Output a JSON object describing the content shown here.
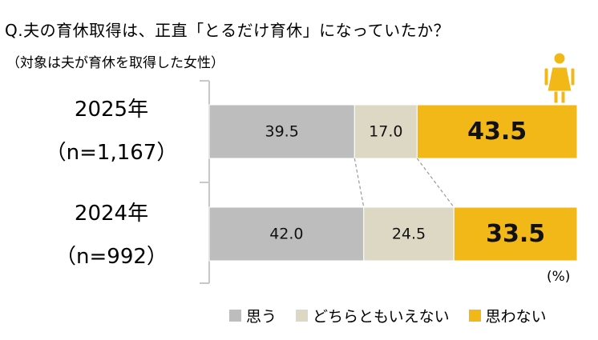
{
  "title": "Q.夫の育休取得は、正直「とるだけ育休」になっていたか？",
  "subtitle": "（対象は夫が育休を取得した女性）",
  "unit_label": "(%)",
  "colors": {
    "omou": "#bdbdbd",
    "dochira": "#dcd8c4",
    "omowanai": "#f2b818",
    "axis": "#c8c8c8",
    "connector": "#9a9a9a"
  },
  "icon": "woman-icon",
  "chart_data": {
    "type": "bar",
    "orientation": "horizontal",
    "stacked": true,
    "percent_stacked": true,
    "categories": [
      "2025年",
      "2024年"
    ],
    "category_sublabels": [
      "（n=1,167）",
      "（n=992）"
    ],
    "series": [
      {
        "name": "思う",
        "values": [
          39.5,
          42.0
        ],
        "color": "#bdbdbd"
      },
      {
        "name": "どちらともいえない",
        "values": [
          17.0,
          24.5
        ],
        "color": "#dcd8c4"
      },
      {
        "name": "思わない",
        "values": [
          43.5,
          33.5
        ],
        "color": "#f2b818"
      }
    ],
    "data_labels": [
      [
        "39.5",
        "17.0",
        "43.5"
      ],
      [
        "42.0",
        "24.5",
        "33.5"
      ]
    ],
    "xlim": [
      0,
      100
    ],
    "unit": "%",
    "legend_position": "bottom"
  }
}
